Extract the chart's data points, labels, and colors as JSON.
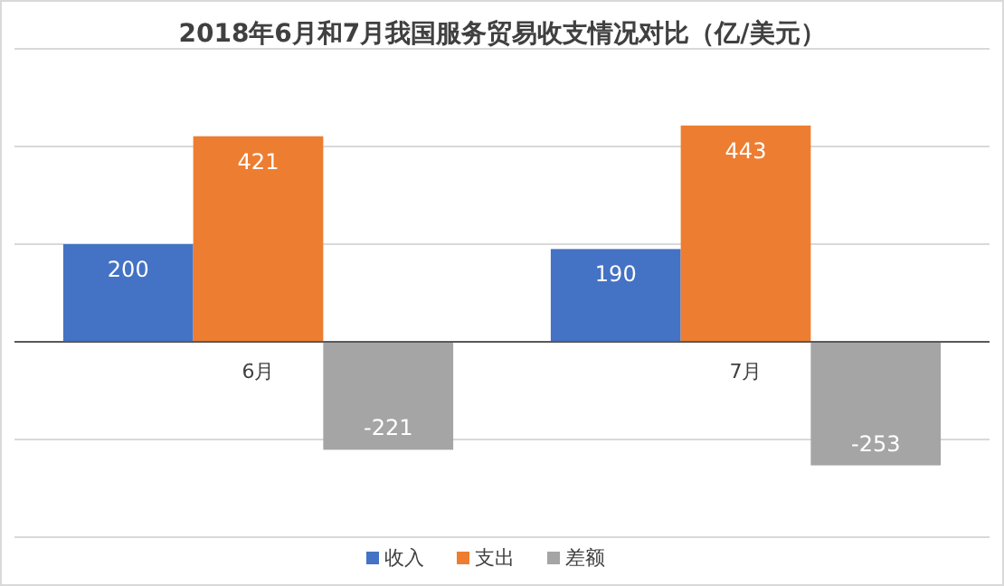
{
  "chart_data": {
    "type": "bar",
    "title": "2018年6月和7月我国服务贸易收支情况对比（亿/美元）",
    "categories": [
      "6月",
      "7月"
    ],
    "series": [
      {
        "name": "收入",
        "color": "#4472c4",
        "values": [
          200,
          190
        ]
      },
      {
        "name": "支出",
        "color": "#ed7d31",
        "values": [
          421,
          443
        ]
      },
      {
        "name": "差额",
        "color": "#a5a5a5",
        "values": [
          -221,
          -253
        ]
      }
    ],
    "data_labels": true,
    "ylim": [
      -400,
      600
    ],
    "yticks": [
      {
        "value": -400,
        "label": null
      },
      {
        "value": -200,
        "label": null
      },
      {
        "value": 0,
        "label": null
      },
      {
        "value": 200,
        "label": null
      },
      {
        "value": 400,
        "label": null
      },
      {
        "value": 600,
        "label": null
      }
    ],
    "grid": "y",
    "legend": "bottom"
  }
}
